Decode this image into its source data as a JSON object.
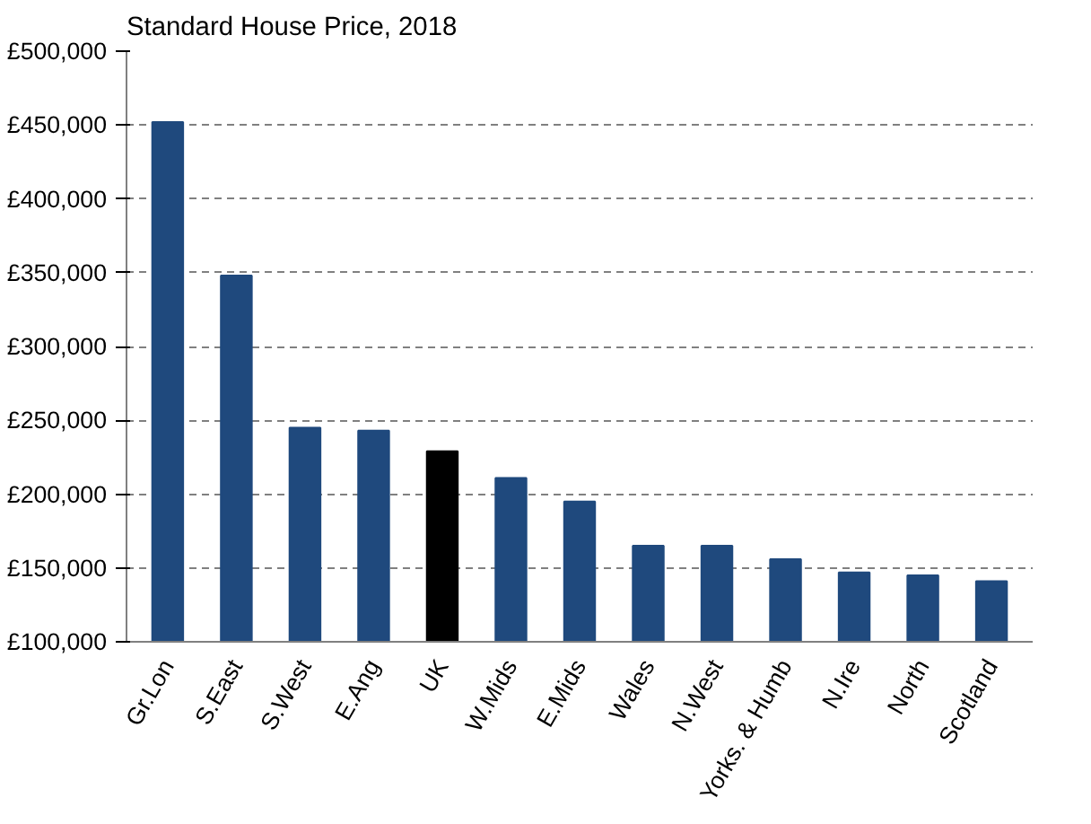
{
  "chart_data": {
    "type": "bar",
    "title": "Standard House Price, 2018",
    "categories": [
      "Gr.Lon",
      "S.East",
      "S.West",
      "E.Ang",
      "UK",
      "W.Mids",
      "E.Mids",
      "Wales",
      "N.West",
      "Yorks. & Humb",
      "N.Ire",
      "North",
      "Scotland"
    ],
    "values": [
      452000,
      348000,
      245000,
      243000,
      229000,
      211000,
      195000,
      165000,
      165000,
      156000,
      147000,
      145000,
      141000
    ],
    "colors": [
      "#1f497d",
      "#1f497d",
      "#1f497d",
      "#1f497d",
      "#000000",
      "#1f497d",
      "#1f497d",
      "#1f497d",
      "#1f497d",
      "#1f497d",
      "#1f497d",
      "#1f497d",
      "#1f497d"
    ],
    "ylim": [
      100000,
      500000
    ],
    "yticks": [
      {
        "value": 100000,
        "label": "£100,000"
      },
      {
        "value": 150000,
        "label": "£150,000"
      },
      {
        "value": 200000,
        "label": "£200,000"
      },
      {
        "value": 250000,
        "label": "£250,000"
      },
      {
        "value": 300000,
        "label": "£300,000"
      },
      {
        "value": 350000,
        "label": "£350,000"
      },
      {
        "value": 400000,
        "label": "£400,000"
      },
      {
        "value": 450000,
        "label": "£450,000"
      },
      {
        "value": 500000,
        "label": "£500,000"
      }
    ],
    "grid": "y"
  }
}
